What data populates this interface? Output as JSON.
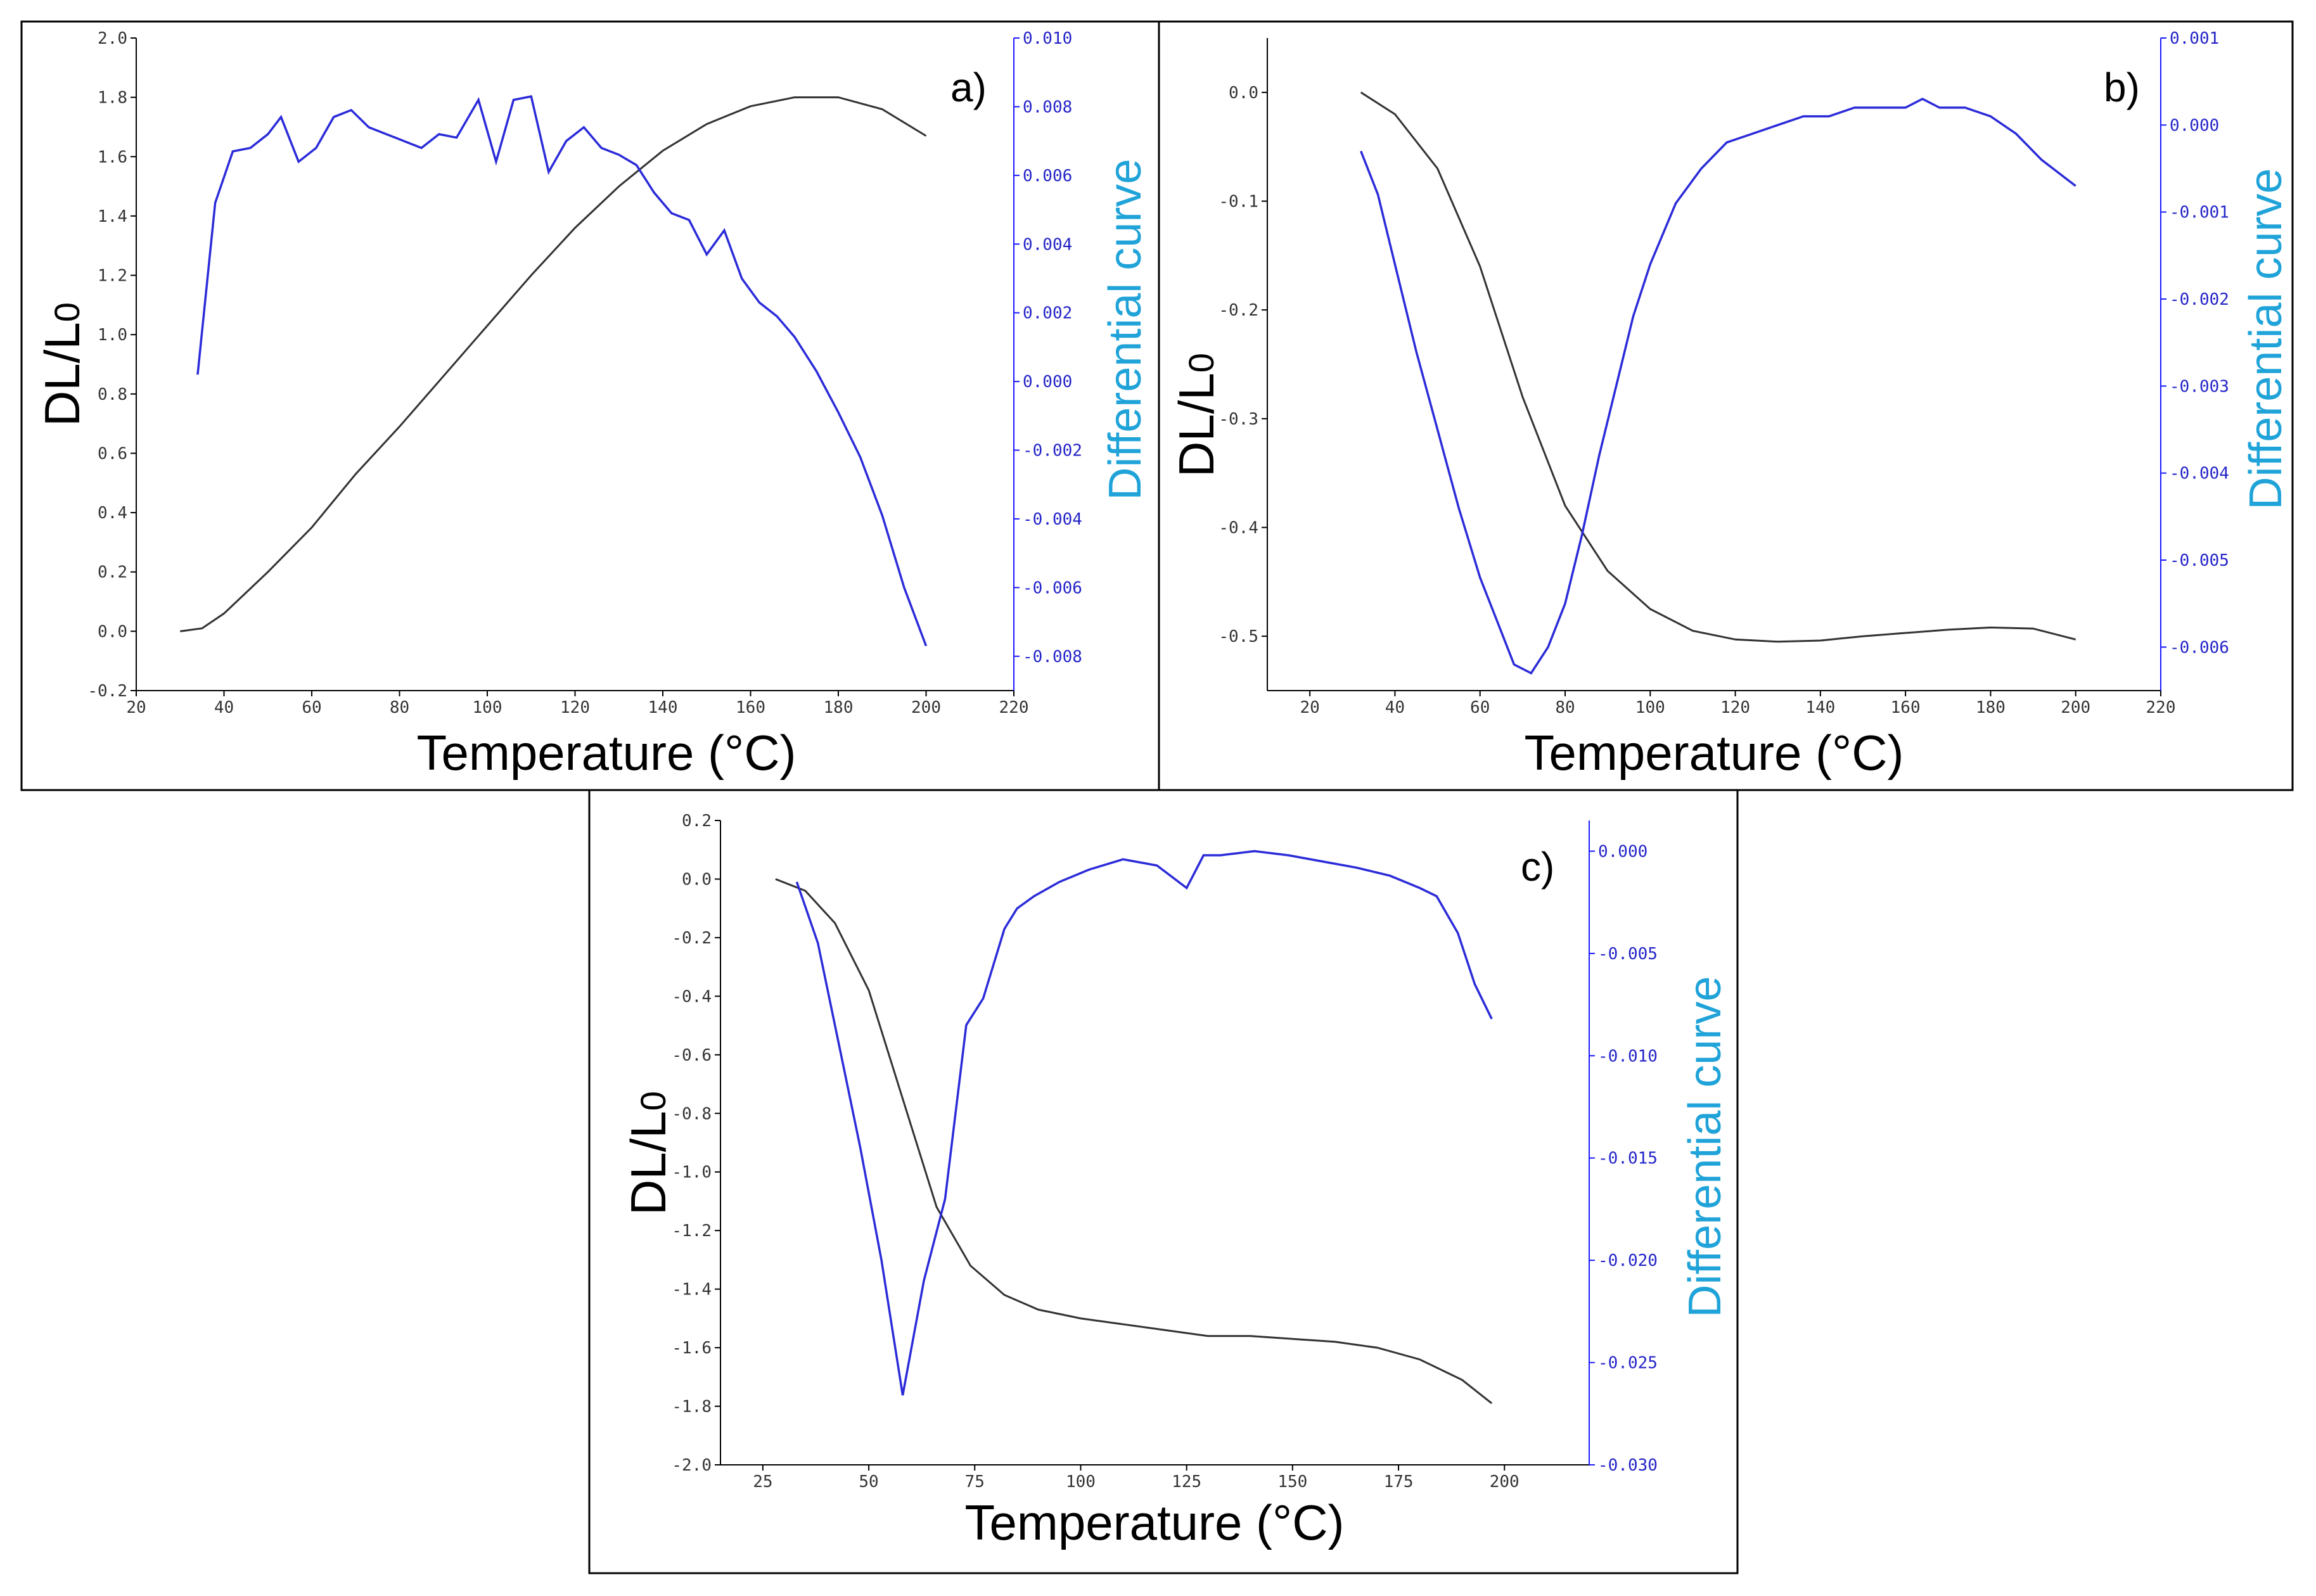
{
  "chart_data": [
    {
      "type": "line",
      "panel_label": "a)",
      "xlabel": "Temperature (°C)",
      "ylabel": "DL/L0",
      "y2label": "Differential curve",
      "xlim": [
        20,
        220
      ],
      "ylim": [
        -0.2,
        2.0
      ],
      "y2lim": [
        -0.009,
        0.01
      ],
      "xticks": [
        20,
        40,
        60,
        80,
        100,
        120,
        140,
        160,
        180,
        200,
        220
      ],
      "yticks": [
        "-0.2",
        "0.0",
        "0.2",
        "0.4",
        "0.6",
        "0.8",
        "1.0",
        "1.2",
        "1.4",
        "1.6",
        "1.8",
        "2.0"
      ],
      "y2ticks": [
        "-0.008",
        "-0.006",
        "-0.004",
        "-0.002",
        "0.000",
        "0.002",
        "0.004",
        "0.006",
        "0.008",
        "0.010"
      ],
      "series": [
        {
          "name": "DL/L0",
          "axis": "left",
          "x": [
            30,
            35,
            40,
            50,
            60,
            70,
            80,
            90,
            100,
            110,
            120,
            130,
            140,
            150,
            160,
            170,
            180,
            190,
            200
          ],
          "y": [
            0.0,
            0.01,
            0.06,
            0.2,
            0.35,
            0.53,
            0.69,
            0.86,
            1.03,
            1.2,
            1.36,
            1.5,
            1.62,
            1.71,
            1.77,
            1.8,
            1.8,
            1.76,
            1.67
          ]
        },
        {
          "name": "Differential curve",
          "axis": "right",
          "x": [
            34,
            38,
            42,
            46,
            50,
            53,
            57,
            61,
            65,
            69,
            73,
            77,
            81,
            85,
            89,
            93,
            98,
            102,
            106,
            110,
            114,
            118,
            122,
            126,
            130,
            134,
            138,
            142,
            146,
            150,
            154,
            158,
            162,
            166,
            170,
            175,
            180,
            185,
            190,
            195,
            200
          ],
          "y": [
            0.0002,
            0.0052,
            0.0067,
            0.0068,
            0.0072,
            0.0077,
            0.0064,
            0.0068,
            0.0077,
            0.0079,
            0.0074,
            0.0072,
            0.007,
            0.0068,
            0.0072,
            0.0071,
            0.0082,
            0.0064,
            0.0082,
            0.0083,
            0.0061,
            0.007,
            0.0074,
            0.0068,
            0.0066,
            0.0063,
            0.0055,
            0.0049,
            0.0047,
            0.0037,
            0.0044,
            0.003,
            0.0023,
            0.0019,
            0.0013,
            0.0003,
            -0.0009,
            -0.0022,
            -0.0039,
            -0.006,
            -0.0077
          ]
        }
      ]
    },
    {
      "type": "line",
      "panel_label": "b)",
      "xlabel": "Temperature (°C)",
      "ylabel": "DL/L0",
      "y2label": "Differential curve",
      "xlim": [
        10,
        220
      ],
      "ylim": [
        -0.55,
        0.05
      ],
      "y2lim": [
        -0.0065,
        0.001
      ],
      "xticks": [
        20,
        40,
        60,
        80,
        100,
        120,
        140,
        160,
        180,
        200,
        220
      ],
      "yticks": [
        "-0.5",
        "-0.4",
        "-0.3",
        "-0.2",
        "-0.1",
        "0.0"
      ],
      "y2ticks": [
        "-0.006",
        "-0.005",
        "-0.004",
        "-0.003",
        "-0.002",
        "-0.001",
        "0.000",
        "0.001"
      ],
      "series": [
        {
          "name": "DL/L0",
          "axis": "left",
          "x": [
            32,
            40,
            50,
            60,
            70,
            80,
            90,
            100,
            110,
            120,
            130,
            140,
            150,
            160,
            170,
            180,
            190,
            200
          ],
          "y": [
            0.0,
            -0.02,
            -0.07,
            -0.16,
            -0.28,
            -0.38,
            -0.44,
            -0.475,
            -0.495,
            -0.503,
            -0.505,
            -0.504,
            -0.5,
            -0.497,
            -0.494,
            -0.492,
            -0.493,
            -0.503
          ]
        },
        {
          "name": "Differential curve",
          "axis": "right",
          "x": [
            32,
            36,
            40,
            45,
            50,
            55,
            60,
            64,
            68,
            72,
            76,
            80,
            84,
            88,
            92,
            96,
            100,
            106,
            112,
            118,
            124,
            130,
            136,
            142,
            148,
            154,
            160,
            164,
            168,
            174,
            180,
            186,
            192,
            200
          ],
          "y": [
            -0.0003,
            -0.0008,
            -0.0016,
            -0.0026,
            -0.0035,
            -0.0044,
            -0.0052,
            -0.0057,
            -0.0062,
            -0.0063,
            -0.006,
            -0.0055,
            -0.0047,
            -0.0038,
            -0.003,
            -0.0022,
            -0.0016,
            -0.0009,
            -0.0005,
            -0.0002,
            -0.0001,
            0.0,
            0.0001,
            0.0001,
            0.0002,
            0.0002,
            0.0002,
            0.0003,
            0.0002,
            0.0002,
            0.0001,
            -0.0001,
            -0.0004,
            -0.0007
          ]
        }
      ]
    },
    {
      "type": "line",
      "panel_label": "c)",
      "xlabel": "Temperature (°C)",
      "ylabel": "DL/L0",
      "y2label": "Differential curve",
      "xlim": [
        15,
        220
      ],
      "ylim": [
        -2.0,
        0.2
      ],
      "y2lim": [
        -0.03,
        0.0015
      ],
      "xticks": [
        25,
        50,
        75,
        100,
        125,
        150,
        175,
        200
      ],
      "yticks": [
        "-2.0",
        "-1.8",
        "-1.6",
        "-1.4",
        "-1.2",
        "-1.0",
        "-0.8",
        "-0.6",
        "-0.4",
        "-0.2",
        "0.0",
        "0.2"
      ],
      "y2ticks": [
        "-0.030",
        "-0.025",
        "-0.020",
        "-0.015",
        "-0.010",
        "-0.005",
        "0.000"
      ],
      "series": [
        {
          "name": "DL/L0",
          "axis": "left",
          "x": [
            28,
            35,
            42,
            50,
            58,
            66,
            74,
            82,
            90,
            100,
            110,
            120,
            130,
            140,
            150,
            160,
            170,
            180,
            190,
            197
          ],
          "y": [
            0.0,
            -0.04,
            -0.15,
            -0.38,
            -0.75,
            -1.12,
            -1.32,
            -1.42,
            -1.47,
            -1.5,
            -1.52,
            -1.54,
            -1.56,
            -1.56,
            -1.57,
            -1.58,
            -1.6,
            -1.64,
            -1.71,
            -1.79
          ]
        },
        {
          "name": "Differential curve",
          "axis": "right",
          "x": [
            33,
            38,
            43,
            48,
            53,
            58,
            63,
            68,
            73,
            77,
            82,
            85,
            89,
            95,
            102,
            110,
            118,
            125,
            129,
            133,
            141,
            149,
            157,
            165,
            173,
            180,
            184,
            189,
            193,
            197
          ],
          "y": [
            -0.0015,
            -0.0045,
            -0.0095,
            -0.0145,
            -0.02,
            -0.0266,
            -0.021,
            -0.017,
            -0.0085,
            -0.0072,
            -0.0038,
            -0.0028,
            -0.0022,
            -0.0015,
            -0.0009,
            -0.0004,
            -0.0007,
            -0.0018,
            -0.0002,
            -0.0002,
            0.0,
            -0.0002,
            -0.0005,
            -0.0008,
            -0.0012,
            -0.0018,
            -0.0022,
            -0.004,
            -0.0065,
            -0.0082
          ]
        }
      ]
    }
  ]
}
